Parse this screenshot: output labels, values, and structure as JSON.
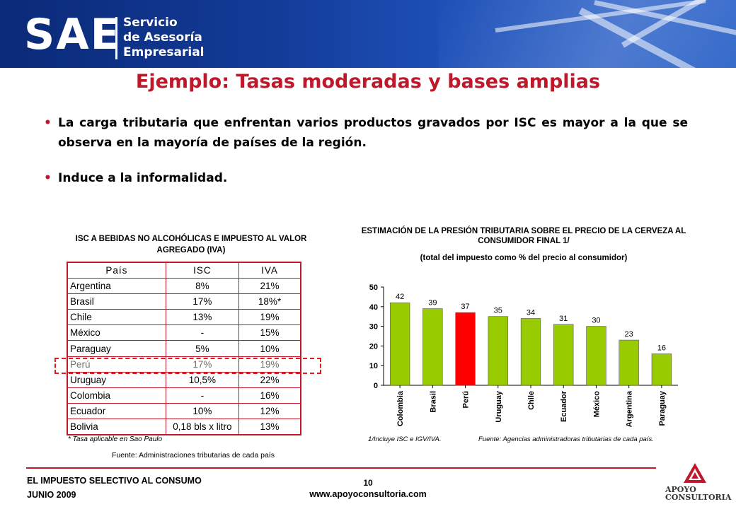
{
  "header": {
    "logo_text": "SAE",
    "logo_subtitle_lines": [
      "Servicio",
      "de Asesoría",
      "Empresarial"
    ]
  },
  "title": "Ejemplo: Tasas moderadas y bases amplias",
  "bullets": [
    "La carga tributaria que enfrentan varios productos gravados por ISC es mayor a la que se observa en la mayoría de países de la región.",
    "Induce a la informalidad."
  ],
  "table": {
    "title": "ISC A BEBIDAS NO ALCOHÓLICAS  E IMPUESTO AL VALOR AGREGADO  (IVA)",
    "headers": [
      "País",
      "ISC",
      "IVA"
    ],
    "rows": [
      [
        "Argentina",
        "8%",
        "21%"
      ],
      [
        "Brasil",
        "17%",
        "18%*"
      ],
      [
        "Chile",
        "13%",
        "19%"
      ],
      [
        "México",
        "-",
        "15%"
      ],
      [
        "Paraguay",
        "5%",
        "10%"
      ],
      [
        "Perú",
        "17%",
        "19%"
      ],
      [
        "Uruguay",
        "10,5%",
        "22%"
      ],
      [
        "Colombia",
        "-",
        "16%"
      ],
      [
        "Ecuador",
        "10%",
        "12%"
      ],
      [
        "Bolivia",
        "0,18 bls x litro",
        "13%"
      ]
    ],
    "highlight_row": "Perú",
    "note": "* Tasa aplicable en Sao Paulo",
    "source": "Fuente: Administraciones tributarias de cada país"
  },
  "chart_data": {
    "type": "bar",
    "title": "ESTIMACIÓN DE LA PRESIÓN TRIBUTARIA  SOBRE EL PRECIO DE LA CERVEZA AL CONSUMIDOR  FINAL 1/",
    "subtitle": "(total del impuesto como % del precio al consumidor)",
    "categories": [
      "Colombia",
      "Brasil",
      "Perú",
      "Uruguay",
      "Chile",
      "Ecuador",
      "México",
      "Argentina",
      "Paraguay"
    ],
    "values": [
      42,
      39,
      37,
      35,
      34,
      31,
      30,
      23,
      16
    ],
    "ylim": [
      0,
      50
    ],
    "yticks": [
      0,
      10,
      20,
      30,
      40,
      50
    ],
    "colors": {
      "default": "#99cc00",
      "highlight": "#ff0000"
    },
    "highlight": "Perú",
    "footnote": "1/Incluye ISC e IGV/IVA.",
    "source": "Fuente: Agencias administradoras tributarias de cada país."
  },
  "footer": {
    "left_lines": [
      "EL IMPUESTO SELECTIVO AL CONSUMO",
      "JUNIO 2009"
    ],
    "page": "10",
    "url": "www.apoyoconsultoria.com",
    "brand_lines": [
      "APOYO",
      "CONSULTORIA"
    ]
  }
}
